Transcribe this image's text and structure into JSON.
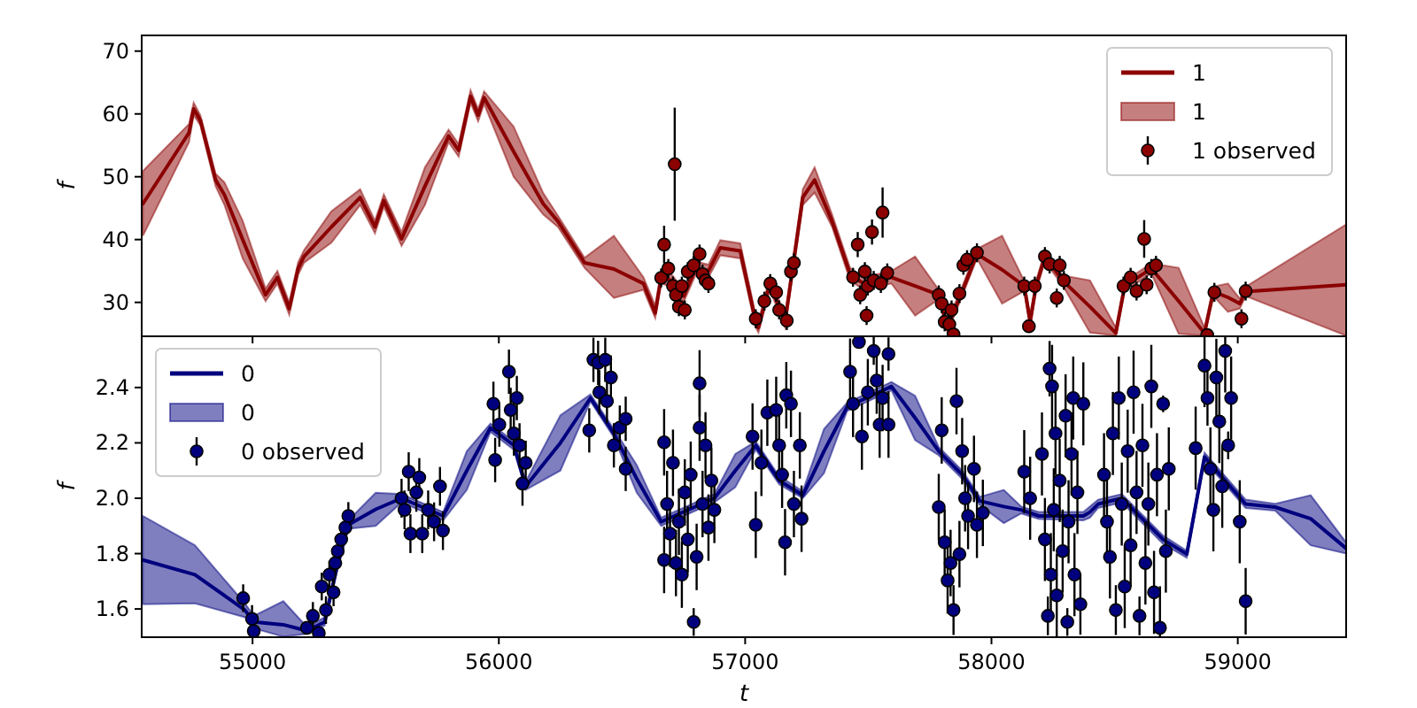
{
  "chart_data": [
    {
      "type": "line",
      "ylabel": "f",
      "xlim": [
        54550,
        59440
      ],
      "xticks": [
        55000,
        56000,
        57000,
        58000,
        59000
      ],
      "ylim": [
        24.6,
        72.5
      ],
      "yticks": [
        30,
        40,
        50,
        60,
        70
      ],
      "tick_labels": "y",
      "legend": "top right",
      "series": [
        {
          "name": "1",
          "color": "#8b0000",
          "x": [
            54555,
            54742,
            54761,
            54788,
            54850,
            54886,
            54960,
            55053,
            55101,
            55149,
            55185,
            55209,
            55320,
            55437,
            55497,
            55533,
            55605,
            55700,
            55796,
            55837,
            55885,
            55916,
            55940,
            56060,
            56180,
            56240,
            56348,
            56467,
            56587,
            56635,
            56659,
            56700,
            56750,
            56800,
            56851,
            56899,
            56980,
            57043,
            57054,
            57100,
            57162,
            57234,
            57282,
            57353,
            57426,
            57480,
            57594,
            57690,
            57786,
            57821,
            57881,
            57941,
            58043,
            58133,
            58157,
            58181,
            58217,
            58289,
            58400,
            58505,
            58541,
            58649,
            58760,
            58865,
            58901,
            58960,
            59008,
            59032,
            59440
          ],
          "values": [
            45.7,
            57.0,
            60.8,
            59.0,
            49.5,
            47.1,
            40.0,
            31.2,
            34.0,
            29.0,
            35.4,
            37.3,
            42.0,
            46.7,
            42.0,
            46.2,
            40.1,
            48.5,
            56.5,
            54.2,
            62.8,
            59.8,
            62.6,
            54.0,
            45.7,
            42.9,
            36.3,
            35.3,
            33.0,
            28.3,
            34.0,
            33.5,
            31.0,
            35.5,
            35.0,
            38.7,
            38.2,
            26.9,
            26.0,
            33.0,
            26.9,
            46.7,
            49.5,
            42.9,
            34.5,
            33.0,
            34.0,
            32.6,
            31.2,
            26.0,
            31.7,
            37.7,
            35.2,
            32.6,
            26.9,
            32.6,
            37.3,
            33.5,
            29.3,
            25.1,
            32.6,
            35.4,
            30.2,
            25.1,
            31.7,
            30.8,
            29.8,
            31.7,
            32.8
          ],
          "lower": [
            40.6,
            55.5,
            59.8,
            58.2,
            48.5,
            45.5,
            37.0,
            30.2,
            33.0,
            28.0,
            34.4,
            36.3,
            39.5,
            45.5,
            41.0,
            45.2,
            39.0,
            45.5,
            55.5,
            53.2,
            61.8,
            58.8,
            61.6,
            50.0,
            44.0,
            42.0,
            35.5,
            30.7,
            32.0,
            27.5,
            33.0,
            32.5,
            30.0,
            34.5,
            34.0,
            37.5,
            37.0,
            26.0,
            25.2,
            32.0,
            26.0,
            45.5,
            47.5,
            42.0,
            33.5,
            32.0,
            33.0,
            27.9,
            30.5,
            25.2,
            31.0,
            37.0,
            29.8,
            31.8,
            26.0,
            31.8,
            36.5,
            32.7,
            25.2,
            24.7,
            31.8,
            34.6,
            25.0,
            24.7,
            31.0,
            28.5,
            29.0,
            31.0,
            24.7
          ],
          "upper": [
            50.9,
            58.4,
            61.8,
            59.8,
            50.5,
            49.1,
            43.0,
            32.2,
            35.0,
            30.0,
            36.4,
            38.3,
            44.5,
            48.0,
            43.0,
            47.2,
            41.2,
            51.5,
            57.5,
            55.2,
            63.8,
            60.8,
            63.6,
            58.0,
            47.4,
            43.8,
            37.1,
            40.6,
            34.0,
            29.5,
            35.0,
            34.5,
            32.0,
            36.5,
            36.0,
            39.9,
            39.4,
            28.0,
            27.0,
            34.0,
            28.0,
            48.0,
            51.5,
            44.0,
            35.5,
            34.0,
            35.0,
            37.3,
            32.0,
            27.0,
            32.5,
            38.5,
            40.6,
            33.4,
            28.0,
            33.4,
            38.1,
            34.3,
            33.5,
            26.0,
            33.4,
            36.2,
            35.5,
            26.0,
            32.5,
            33.0,
            30.6,
            32.5,
            42.4
          ]
        },
        {
          "name": "1 observed",
          "type": "scatter",
          "marker": "circle",
          "color": "#8b0000",
          "x": [
            56659,
            56671,
            56688,
            56707,
            56714,
            56719,
            56731,
            56743,
            56755,
            56767,
            56791,
            56815,
            56827,
            56839,
            56851,
            57043,
            57078,
            57102,
            57126,
            57138,
            57169,
            57186,
            57198,
            57438,
            57457,
            57467,
            57486,
            57493,
            57498,
            57515,
            57522,
            57551,
            57558,
            57577,
            57786,
            57798,
            57810,
            57829,
            57838,
            57846,
            57870,
            57886,
            57901,
            57941,
            58133,
            58152,
            58176,
            58217,
            58236,
            58265,
            58277,
            58294,
            58536,
            58565,
            58589,
            58620,
            58630,
            58649,
            58668,
            58876,
            58905,
            59015,
            59032
          ],
          "values": [
            33.9,
            39.2,
            35.4,
            32.6,
            52.0,
            31.2,
            29.3,
            32.6,
            28.8,
            34.9,
            35.9,
            37.7,
            34.5,
            33.5,
            33.0,
            27.4,
            30.2,
            33.0,
            31.6,
            28.8,
            27.1,
            34.9,
            36.3,
            34.0,
            39.2,
            31.2,
            34.9,
            27.9,
            32.6,
            41.2,
            33.5,
            33.0,
            44.3,
            34.7,
            31.2,
            29.8,
            26.9,
            26.5,
            28.8,
            24.9,
            31.4,
            35.9,
            36.8,
            37.9,
            32.6,
            26.2,
            32.6,
            37.3,
            36.1,
            30.7,
            35.9,
            33.5,
            32.6,
            34.0,
            31.8,
            40.1,
            32.8,
            35.4,
            35.9,
            24.8,
            31.6,
            27.4,
            31.8
          ],
          "errors": [
            1.5,
            3,
            1.5,
            1.5,
            9,
            1.5,
            1.5,
            1.5,
            1.5,
            1.5,
            1.5,
            1.5,
            1.5,
            1.5,
            1.5,
            1.5,
            1.5,
            1.5,
            1.5,
            1.5,
            1.5,
            1.5,
            1.5,
            1.5,
            2,
            1.5,
            1.5,
            1.5,
            1.5,
            2,
            1.5,
            1.5,
            4,
            1.5,
            1.5,
            1.5,
            1.5,
            1.5,
            1.5,
            null,
            1.5,
            1.5,
            1.5,
            1.5,
            1.5,
            null,
            1.5,
            1.5,
            1.5,
            1.5,
            1.5,
            1.5,
            1.5,
            1.5,
            1.5,
            3,
            1.5,
            1.5,
            1.5,
            null,
            1.5,
            1.5,
            1.5
          ]
        }
      ]
    },
    {
      "type": "line",
      "xlabel": "t",
      "ylabel": "f",
      "xlim": [
        54550,
        59440
      ],
      "xticks": [
        55000,
        56000,
        57000,
        58000,
        59000
      ],
      "ylim": [
        1.498,
        2.585
      ],
      "yticks": [
        {
          "value": 1.6,
          "label": "1.6"
        },
        {
          "value": 1.8,
          "label": "1.8"
        },
        {
          "value": 2.0,
          "label": "2.0"
        },
        {
          "value": 2.2,
          "label": "2.2"
        },
        {
          "value": 2.4,
          "label": "2.4"
        }
      ],
      "legend": "top left",
      "series": [
        {
          "name": "0",
          "color": "#00007f",
          "x": [
            54555,
            54766,
            54969,
            55005,
            55125,
            55221,
            55293,
            55341,
            55389,
            55500,
            55605,
            55774,
            55870,
            55966,
            56061,
            56109,
            56250,
            56372,
            56467,
            56560,
            56659,
            56875,
            56960,
            57043,
            57138,
            57234,
            57320,
            57414,
            57594,
            57690,
            57786,
            57881,
            57953,
            58050,
            58121,
            58193,
            58373,
            58400,
            58433,
            58529,
            58697,
            58793,
            58865,
            59032,
            59152,
            59296,
            59440
          ],
          "values": [
            1.777,
            1.724,
            1.596,
            1.553,
            1.543,
            1.521,
            1.553,
            1.745,
            1.904,
            1.96,
            2.0,
            1.936,
            2.1,
            2.255,
            2.191,
            2.043,
            2.2,
            2.362,
            2.234,
            2.07,
            1.915,
            2.0,
            2.1,
            2.191,
            2.064,
            2.011,
            2.17,
            2.33,
            2.404,
            2.29,
            2.17,
            2.085,
            1.99,
            1.97,
            1.958,
            1.936,
            1.936,
            1.95,
            1.979,
            2.0,
            1.851,
            1.798,
            2.149,
            1.979,
            1.968,
            1.926,
            1.819
          ],
          "lower": [
            1.617,
            1.62,
            1.57,
            1.53,
            1.5,
            1.51,
            1.54,
            1.73,
            1.89,
            1.9,
            1.985,
            1.92,
            2.03,
            2.24,
            2.175,
            2.03,
            2.1,
            2.35,
            2.22,
            2.02,
            1.9,
            1.985,
            2.04,
            2.175,
            2.05,
            2.0,
            2.09,
            2.315,
            2.39,
            2.21,
            2.155,
            2.07,
            1.975,
            1.91,
            1.945,
            1.925,
            1.92,
            1.93,
            1.965,
            1.985,
            1.835,
            1.785,
            2.135,
            1.965,
            1.955,
            1.83,
            1.8
          ],
          "upper": [
            1.936,
            1.83,
            1.62,
            1.575,
            1.628,
            1.535,
            1.57,
            1.76,
            1.92,
            2.02,
            2.015,
            1.95,
            2.17,
            2.27,
            2.205,
            2.06,
            2.3,
            2.375,
            2.25,
            2.12,
            1.93,
            2.015,
            2.16,
            2.205,
            2.08,
            2.025,
            2.25,
            2.345,
            2.42,
            2.37,
            2.185,
            2.1,
            2.005,
            2.03,
            1.97,
            1.95,
            1.95,
            1.97,
            1.995,
            2.015,
            1.865,
            1.81,
            2.165,
            1.995,
            1.98,
            2.011,
            1.84
          ]
        },
        {
          "name": "0 observed",
          "type": "scatter",
          "marker": "circle",
          "color": "#00007f",
          "x": [
            54962,
            54998,
            55005,
            55221,
            55245,
            55269,
            55281,
            55298,
            55312,
            55329,
            55336,
            55346,
            55360,
            55377,
            55389,
            55605,
            55617,
            55634,
            55641,
            55665,
            55677,
            55689,
            55713,
            55737,
            55761,
            55773,
            55978,
            55985,
            56002,
            56041,
            56048,
            56061,
            56073,
            56084,
            56096,
            56109,
            56367,
            56384,
            56403,
            56408,
            56432,
            56439,
            56455,
            56467,
            56491,
            56515,
            56515,
            56671,
            56671,
            56683,
            56695,
            56707,
            56719,
            56731,
            56743,
            56755,
            56767,
            56779,
            56791,
            56803,
            56815,
            56815,
            56827,
            56839,
            56851,
            56863,
            56875,
            57030,
            57043,
            57066,
            57090,
            57126,
            57138,
            57150,
            57162,
            57167,
            57186,
            57198,
            57222,
            57229,
            57426,
            57438,
            57462,
            57474,
            57498,
            57522,
            57534,
            57546,
            57558,
            57582,
            57582,
            57786,
            57798,
            57810,
            57822,
            57834,
            57846,
            57858,
            57870,
            57881,
            57893,
            57905,
            57929,
            57941,
            57965,
            58133,
            58157,
            58205,
            58217,
            58229,
            58236,
            58241,
            58246,
            58253,
            58260,
            58265,
            58277,
            58289,
            58301,
            58308,
            58313,
            58325,
            58332,
            58337,
            58349,
            58361,
            58373,
            58457,
            58469,
            58481,
            58493,
            58505,
            58517,
            58529,
            58541,
            58553,
            58565,
            58577,
            58589,
            58601,
            58613,
            58625,
            58637,
            58649,
            58660,
            58672,
            58684,
            58697,
            58708,
            58720,
            58829,
            58865,
            58877,
            58889,
            58901,
            58913,
            58925,
            58937,
            58949,
            58961,
            58973,
            59008,
            59032
          ],
          "values": [
            1.639,
            1.564,
            1.52,
            1.532,
            1.575,
            1.513,
            1.681,
            1.596,
            1.724,
            1.66,
            1.766,
            1.809,
            1.851,
            1.894,
            1.936,
            2.0,
            1.958,
            2.096,
            1.872,
            2.021,
            2.075,
            1.872,
            1.958,
            1.915,
            2.043,
            1.883,
            2.341,
            2.138,
            2.266,
            2.457,
            2.319,
            2.234,
            2.362,
            2.191,
            2.053,
            2.128,
            2.245,
            2.5,
            2.489,
            2.383,
            2.5,
            2.351,
            2.436,
            2.191,
            2.255,
            2.287,
            2.106,
            2.202,
            1.777,
            1.979,
            1.872,
            2.128,
            1.766,
            1.915,
            1.724,
            2.021,
            1.851,
            2.085,
            1.553,
            1.788,
            2.415,
            2.255,
            1.979,
            2.191,
            1.894,
            2.064,
            1.958,
            2.223,
            1.904,
            2.128,
            2.309,
            2.319,
            2.191,
            2.085,
            1.841,
            2.372,
            2.341,
            1.979,
            2.191,
            1.926,
            2.457,
            2.341,
            2.564,
            2.223,
            2.383,
            2.532,
            2.425,
            2.266,
            2.362,
            2.521,
            2.266,
            1.968,
            2.245,
            1.841,
            1.703,
            1.766,
            1.596,
            2.351,
            1.798,
            2.17,
            2.0,
            1.936,
            2.106,
            1.904,
            1.947,
            2.096,
            2.0,
            2.16,
            1.851,
            1.575,
            2.468,
            1.724,
            2.404,
            1.958,
            2.234,
            1.649,
            2.064,
            1.809,
            2.298,
            1.553,
            1.915,
            2.16,
            2.362,
            1.724,
            2.021,
            1.617,
            2.341,
            2.085,
            1.915,
            1.788,
            2.234,
            1.596,
            2.362,
            1.979,
            1.681,
            2.17,
            1.83,
            2.383,
            2.021,
            1.575,
            2.191,
            1.766,
            1.979,
            2.404,
            1.66,
            2.085,
            1.532,
            2.341,
            1.809,
            2.106,
            2.181,
            2.479,
            2.362,
            2.106,
            1.958,
            2.436,
            2.277,
            2.043,
            2.532,
            2.191,
            2.362,
            1.915,
            1.628
          ],
          "errors": [
            0.05,
            0.05,
            0.02,
            null,
            0.05,
            0.015,
            0.05,
            0.05,
            0.05,
            0.05,
            0.05,
            0.05,
            0.05,
            0.05,
            0.05,
            0.07,
            0.07,
            0.07,
            0.07,
            0.07,
            0.07,
            0.07,
            0.07,
            0.07,
            0.07,
            0.07,
            0.08,
            0.08,
            0.08,
            0.08,
            0.08,
            0.08,
            0.08,
            0.08,
            0.08,
            0.08,
            0.08,
            0.08,
            0.08,
            0.08,
            0.08,
            0.08,
            0.08,
            0.08,
            0.08,
            0.08,
            0.08,
            0.12,
            0.12,
            0.12,
            0.12,
            0.12,
            0.12,
            0.12,
            0.12,
            0.12,
            0.12,
            0.12,
            0.05,
            0.12,
            0.12,
            0.12,
            0.12,
            0.12,
            0.12,
            0.12,
            0.12,
            0.12,
            0.12,
            0.12,
            0.12,
            0.12,
            0.12,
            0.12,
            0.12,
            0.12,
            0.12,
            0.12,
            0.12,
            0.12,
            0.12,
            0.12,
            0.02,
            0.12,
            0.12,
            0.05,
            0.12,
            0.12,
            0.12,
            0.06,
            0.12,
            0.12,
            0.12,
            0.12,
            0.12,
            0.12,
            0.09,
            0.12,
            0.12,
            0.12,
            0.12,
            0.12,
            0.12,
            0.12,
            0.12,
            0.15,
            0.15,
            0.15,
            0.15,
            0.07,
            0.1,
            0.15,
            0.15,
            0.15,
            0.15,
            0.15,
            0.15,
            0.15,
            0.15,
            0.05,
            0.15,
            0.15,
            0.15,
            0.15,
            0.15,
            0.11,
            0.15,
            0.15,
            0.15,
            0.15,
            0.15,
            0.09,
            0.15,
            0.15,
            0.15,
            0.15,
            0.15,
            0.15,
            0.15,
            0.07,
            0.15,
            0.15,
            0.15,
            0.15,
            0.15,
            0.15,
            0.15,
            0.03,
            0.15,
            0.15,
            0.15,
            0.15,
            0.1,
            0.15,
            0.15,
            0.14,
            0.15,
            0.15,
            0.15,
            0.05,
            0.15,
            0.15,
            0.12
          ]
        }
      ]
    }
  ]
}
